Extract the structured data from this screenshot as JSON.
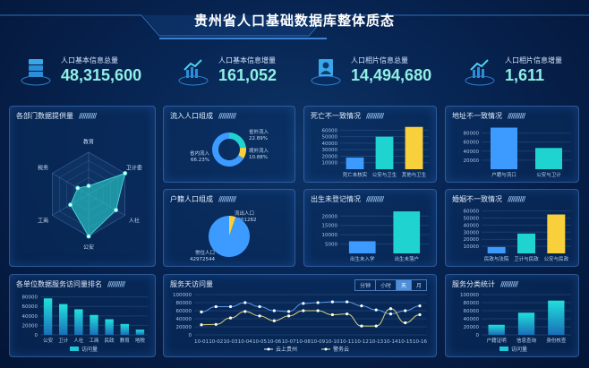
{
  "header": {
    "title": "贵州省人口基础数据库整体质态"
  },
  "kpis": [
    {
      "label": "人口基本信息总量",
      "value": "48,315,600",
      "icon": "database-icon"
    },
    {
      "label": "人口基本信息增量",
      "value": "161,052",
      "icon": "trend-up-icon"
    },
    {
      "label": "人口相片信息总量",
      "value": "14,494,680",
      "icon": "portrait-icon"
    },
    {
      "label": "人口相片信息增量",
      "value": "1,611",
      "icon": "trend-up-icon"
    }
  ],
  "panels": {
    "dept": "各部门数据提供量",
    "inflow": "流入人口组成",
    "huji": "户籍人口组成",
    "death": "死亡不一致情况",
    "address": "地址不一致情况",
    "birth": "出生未登记情况",
    "marriage": "婚姻不一致情况",
    "rank": "各单位数据服务访问量排名",
    "daily": "服务天访问量",
    "category": "服务分类统计"
  },
  "decor_slashes": "//////////",
  "time_tabs": [
    "分钟",
    "小时",
    "天",
    "月"
  ],
  "active_tab": "天",
  "colors": {
    "blue": "#3d9bff",
    "teal": "#1fd3d0",
    "yellow": "#f8d03c",
    "white": "#e8f2ff",
    "line_yellow": "#e8e08a"
  },
  "chart_data": [
    {
      "id": "dept",
      "type": "radar",
      "axes": [
        "教育",
        "卫计委",
        "人社",
        "公安",
        "工商",
        "税务"
      ],
      "values": [
        0.2,
        1.0,
        0.75,
        1.0,
        0.5,
        0.3
      ],
      "max": 1
    },
    {
      "id": "inflow",
      "type": "pie",
      "donut": true,
      "slices": [
        {
          "name": "省外流入",
          "value": 22.89,
          "label": "22.89%"
        },
        {
          "name": "境外流入",
          "value": 10.88,
          "label": "10.88%"
        },
        {
          "name": "省内流入",
          "value": 66.23,
          "label": "66.23%"
        }
      ]
    },
    {
      "id": "huji",
      "type": "pie",
      "donut": false,
      "slices": [
        {
          "name": "流出人口",
          "value": 2361282,
          "label": "2361282"
        },
        {
          "name": "常住人口",
          "value": 42972544,
          "label": "42972544"
        }
      ]
    },
    {
      "id": "death",
      "type": "bar",
      "categories": [
        "死亡未核实",
        "公安与卫生",
        "其他与卫生"
      ],
      "values": [
        18000,
        50000,
        65000
      ],
      "colors": [
        "blue",
        "teal",
        "yellow"
      ],
      "yticks": [
        10000,
        20000,
        30000,
        40000,
        50000,
        60000
      ],
      "ylim": [
        0,
        66000
      ]
    },
    {
      "id": "address",
      "type": "bar",
      "categories": [
        "户籍与流口",
        "公安与卫计"
      ],
      "values": [
        92000,
        47000
      ],
      "colors": [
        "blue",
        "teal"
      ],
      "yticks": [
        20000,
        40000,
        60000,
        80000
      ],
      "ylim": [
        0,
        95000
      ]
    },
    {
      "id": "birth",
      "type": "bar",
      "categories": [
        "出生未入学",
        "出生未落户"
      ],
      "values": [
        6500,
        22500
      ],
      "colors": [
        "blue",
        "teal"
      ],
      "yticks": [
        5000,
        10000,
        15000,
        20000
      ],
      "ylim": [
        0,
        23500
      ]
    },
    {
      "id": "marriage",
      "type": "bar",
      "categories": [
        "民政与法院",
        "卫计与民政",
        "公安与民政"
      ],
      "values": [
        9000,
        28000,
        55000
      ],
      "colors": [
        "blue",
        "teal",
        "yellow"
      ],
      "yticks": [
        10000,
        20000,
        30000,
        40000,
        50000,
        60000
      ],
      "ylim": [
        0,
        62000
      ]
    },
    {
      "id": "rank",
      "type": "bar",
      "categories": [
        "公安",
        "卫计",
        "人社",
        "工商",
        "民政",
        "教育",
        "地税"
      ],
      "values": [
        77000,
        65000,
        54000,
        42000,
        33000,
        23000,
        11000
      ],
      "gradient": true,
      "yticks": [
        0,
        20000,
        40000,
        60000,
        80000
      ],
      "ylim": [
        0,
        85000
      ],
      "legend": "访问量"
    },
    {
      "id": "daily",
      "type": "line",
      "x": [
        "10-01",
        "10-02",
        "10-03",
        "10-04",
        "10-05",
        "10-06",
        "10-07",
        "10-08",
        "10-09",
        "10-10",
        "10-11",
        "10-12",
        "10-13",
        "10-14",
        "10-15",
        "10-16"
      ],
      "series": [
        {
          "name": "云上贵州",
          "values": [
            57000,
            70000,
            70000,
            80000,
            70000,
            60000,
            58000,
            78000,
            80000,
            82000,
            82000,
            72000,
            62000,
            52000,
            60000,
            72000
          ],
          "color": "white"
        },
        {
          "name": "警务云",
          "values": [
            25000,
            26000,
            42000,
            58000,
            47000,
            35000,
            47000,
            60000,
            60000,
            50000,
            52000,
            22000,
            22000,
            65000,
            30000,
            50000
          ],
          "color": "line_yellow"
        }
      ],
      "yticks": [
        0,
        20000,
        40000,
        60000,
        80000,
        100000
      ],
      "ylim": [
        0,
        100000
      ]
    },
    {
      "id": "category",
      "type": "bar",
      "categories": [
        "户籍证明",
        "信息查询",
        "身份核查"
      ],
      "values": [
        25000,
        55000,
        85000
      ],
      "gradient": true,
      "yticks": [
        0,
        20000,
        40000,
        60000,
        80000,
        100000
      ],
      "ylim": [
        0,
        100000
      ],
      "legend": "访问量"
    }
  ]
}
